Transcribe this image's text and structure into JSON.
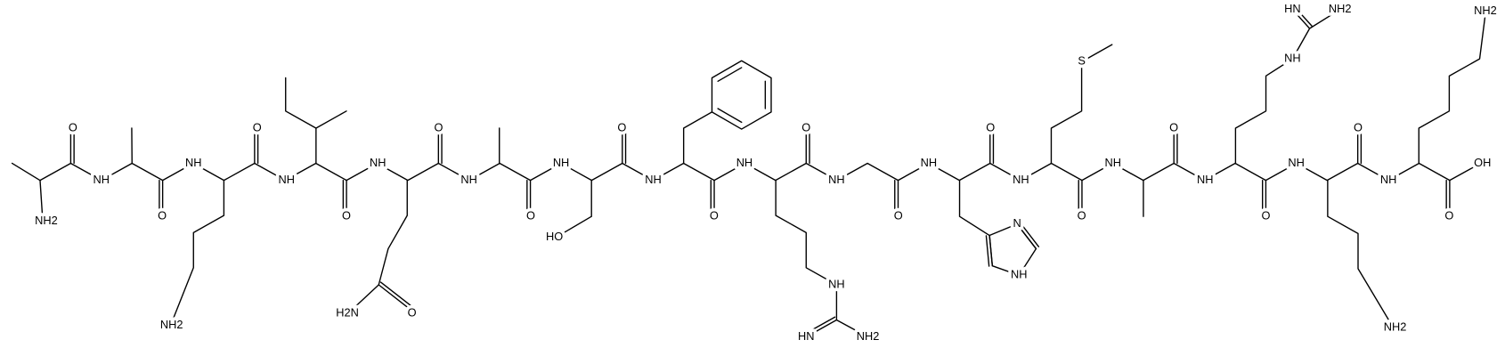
{
  "atom_labels": [
    "NH2",
    "O",
    "NH",
    "O",
    "NH",
    "NH2",
    "O",
    "NH",
    "O",
    "NH",
    "H2N",
    "O",
    "O",
    "NH",
    "O",
    "NH",
    "HO",
    "O",
    "NH",
    "O",
    "NH",
    "NH",
    "HN",
    "NH2",
    "O",
    "NH",
    "O",
    "NH",
    "N",
    "NH",
    "O",
    "NH",
    "S",
    "O",
    "NH",
    "O",
    "NH",
    "NH",
    "HN",
    "NH2",
    "O",
    "NH",
    "NH2",
    "O",
    "NH",
    "NH2",
    "O",
    "OH"
  ]
}
